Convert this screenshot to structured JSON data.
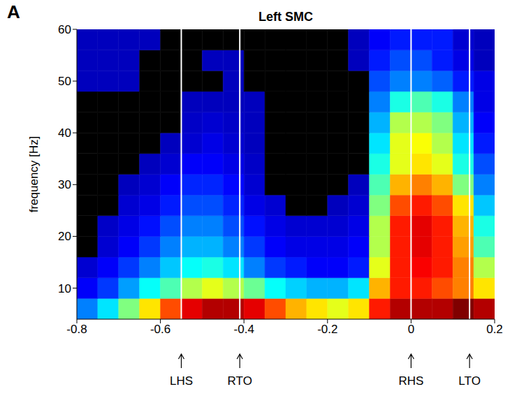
{
  "chart_data": {
    "type": "heatmap",
    "panel": "A",
    "title": "Left SMC",
    "y_label": "frequency [Hz]",
    "xlim": [
      -0.8,
      0.2
    ],
    "xticks": [
      -0.8,
      -0.6,
      -0.4,
      -0.2,
      0,
      0.2
    ],
    "ylim": [
      4,
      60
    ],
    "yticks": [
      10,
      20,
      30,
      40,
      50,
      60
    ],
    "x_edges": [
      -0.8,
      -0.75,
      -0.7,
      -0.65,
      -0.6,
      -0.55,
      -0.5,
      -0.45,
      -0.4,
      -0.35,
      -0.3,
      -0.25,
      -0.2,
      -0.15,
      -0.1,
      -0.05,
      0,
      0.05,
      0.1,
      0.15,
      0.2
    ],
    "y_edges": [
      4,
      8,
      12,
      16,
      20,
      24,
      28,
      32,
      36,
      40,
      44,
      48,
      52,
      56,
      60
    ],
    "cells": [
      [
        0.25,
        0.35,
        0.5,
        0.65,
        0.8,
        0.9,
        0.95,
        0.95,
        0.9,
        0.8,
        0.7,
        0.65,
        0.6,
        0.65,
        0.85,
        0.95,
        0.95,
        0.95,
        1.0,
        0.95
      ],
      [
        0.12,
        0.18,
        0.28,
        0.38,
        0.45,
        0.55,
        0.6,
        0.55,
        0.48,
        0.38,
        0.33,
        0.3,
        0.3,
        0.35,
        0.7,
        0.85,
        0.85,
        0.8,
        0.75,
        0.65
      ],
      [
        0.08,
        0.12,
        0.18,
        0.25,
        0.32,
        0.38,
        0.4,
        0.35,
        0.25,
        0.18,
        0.15,
        0.12,
        0.12,
        0.15,
        0.6,
        0.85,
        0.88,
        0.85,
        0.75,
        0.55
      ],
      [
        null,
        0.08,
        0.12,
        0.18,
        0.25,
        0.3,
        0.3,
        0.25,
        0.18,
        0.12,
        0.1,
        0.1,
        0.1,
        0.12,
        0.55,
        0.85,
        0.9,
        0.85,
        0.72,
        0.45
      ],
      [
        null,
        0.07,
        0.1,
        0.14,
        0.2,
        0.25,
        0.25,
        0.2,
        0.14,
        0.1,
        0.08,
        0.08,
        0.08,
        0.1,
        0.55,
        0.85,
        0.9,
        0.85,
        0.7,
        0.4
      ],
      [
        null,
        null,
        0.08,
        0.1,
        0.15,
        0.2,
        0.2,
        0.16,
        0.1,
        0.08,
        null,
        null,
        0.06,
        0.08,
        0.5,
        0.8,
        0.85,
        0.8,
        0.65,
        0.32
      ],
      [
        null,
        null,
        0.06,
        0.08,
        0.12,
        0.16,
        0.16,
        0.13,
        0.08,
        null,
        null,
        null,
        null,
        0.06,
        0.45,
        0.7,
        0.75,
        0.7,
        0.5,
        0.25
      ],
      [
        null,
        null,
        null,
        0.06,
        0.08,
        0.12,
        0.12,
        0.1,
        0.07,
        null,
        null,
        null,
        null,
        null,
        0.4,
        0.6,
        0.65,
        0.6,
        0.4,
        0.2
      ],
      [
        null,
        null,
        null,
        null,
        0.06,
        0.08,
        0.1,
        0.08,
        0.06,
        null,
        null,
        null,
        null,
        null,
        0.35,
        0.6,
        0.62,
        0.55,
        0.35,
        0.15
      ],
      [
        null,
        null,
        null,
        null,
        null,
        0.07,
        0.08,
        0.07,
        0.06,
        null,
        null,
        null,
        null,
        null,
        0.3,
        0.55,
        0.55,
        0.5,
        0.3,
        0.12
      ],
      [
        null,
        null,
        null,
        null,
        null,
        0.06,
        0.06,
        0.06,
        0.06,
        null,
        null,
        null,
        null,
        null,
        0.25,
        0.4,
        0.45,
        0.4,
        0.25,
        0.1
      ],
      [
        0.06,
        0.06,
        0.06,
        null,
        null,
        null,
        null,
        0.06,
        null,
        null,
        null,
        null,
        null,
        null,
        0.2,
        0.25,
        0.25,
        0.22,
        0.15,
        0.1
      ],
      [
        0.06,
        0.06,
        0.06,
        null,
        null,
        null,
        0.06,
        0.06,
        null,
        null,
        null,
        null,
        null,
        0.06,
        0.15,
        0.2,
        0.2,
        0.15,
        0.1,
        0.06
      ],
      [
        0.06,
        0.06,
        0.06,
        0.06,
        null,
        null,
        null,
        null,
        null,
        null,
        null,
        null,
        null,
        0.06,
        0.12,
        0.15,
        0.15,
        0.15,
        0.08,
        0.06
      ]
    ],
    "events": [
      {
        "x": -0.55,
        "label": "LHS"
      },
      {
        "x": -0.41,
        "label": "RTO"
      },
      {
        "x": 0,
        "label": "RHS"
      },
      {
        "x": 0.14,
        "label": "LTO"
      }
    ]
  }
}
